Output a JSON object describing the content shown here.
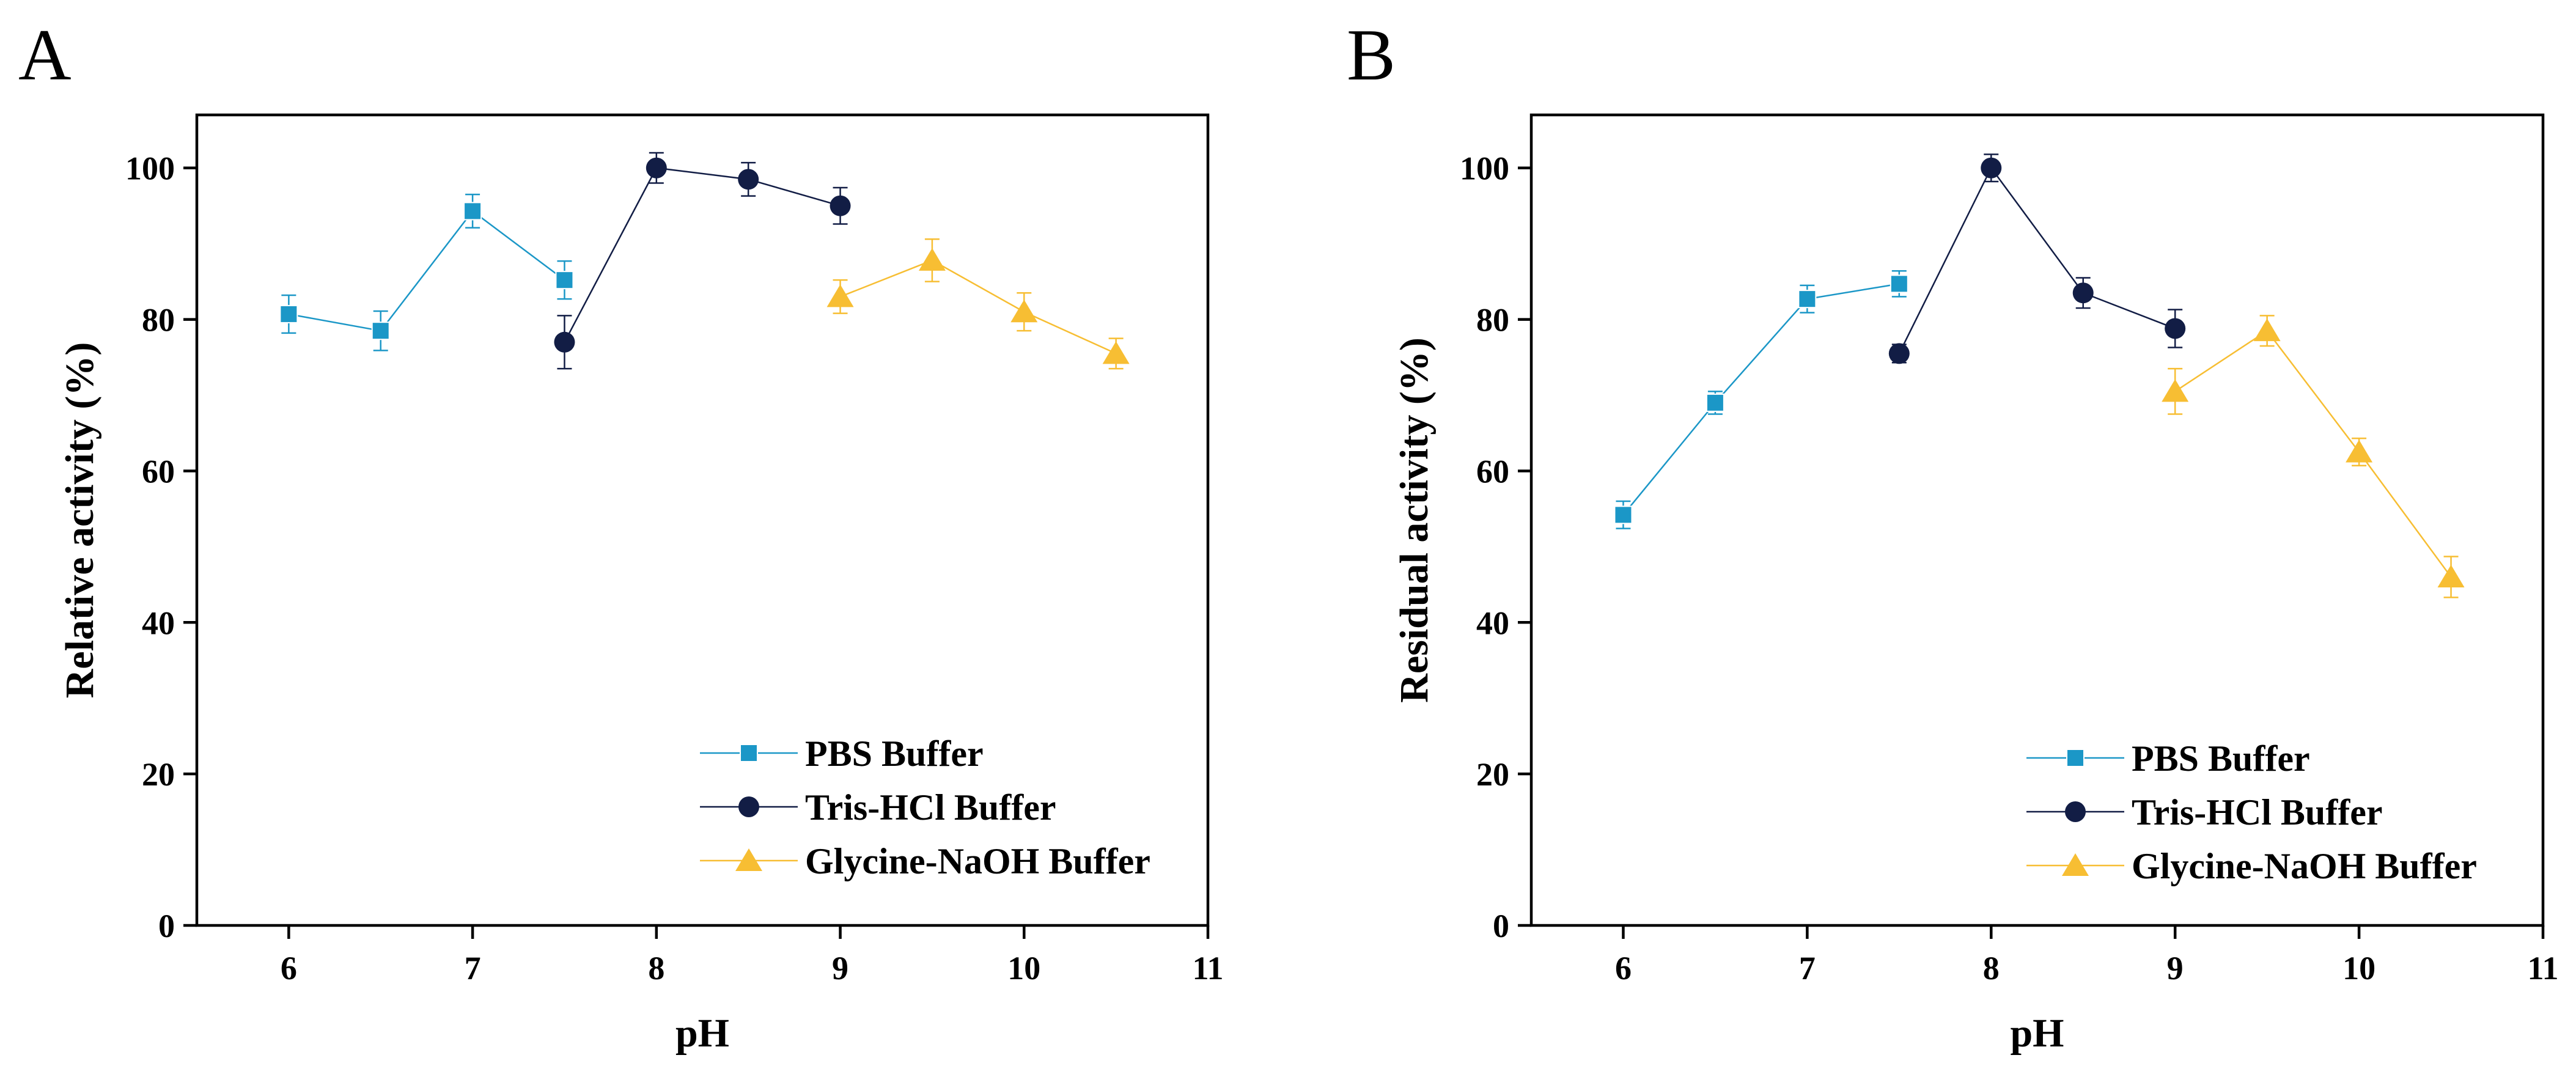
{
  "figure": {
    "colors": {
      "PBS Buffer": "#1b97c7",
      "Tris-HCl Buffer": "#121d45",
      "Glycine-NaOH Buffer": "#f7be33"
    }
  },
  "chart_data": [
    {
      "panel": "A",
      "type": "line",
      "title": "",
      "xlabel": "pH",
      "ylabel": "Relative activity (%)",
      "xlim": [
        5.5,
        11
      ],
      "ylim": [
        0,
        107
      ],
      "xticks": [
        6,
        7,
        8,
        9,
        10,
        11
      ],
      "yticks": [
        0,
        20,
        40,
        60,
        80,
        100
      ],
      "grid": false,
      "legend_position": "bottom-right",
      "series": [
        {
          "name": "PBS Buffer",
          "marker": "square",
          "color": "#1b97c7",
          "x": [
            6,
            6.5,
            7,
            7.5
          ],
          "y": [
            80.7,
            78.5,
            94.3,
            85.2
          ],
          "err": [
            2.5,
            2.6,
            2.2,
            2.5
          ]
        },
        {
          "name": "Tris-HCl Buffer",
          "marker": "circle",
          "color": "#121d45",
          "x": [
            7.5,
            8,
            8.5,
            9
          ],
          "y": [
            77.0,
            100.0,
            98.5,
            95.0
          ],
          "err": [
            3.5,
            2.0,
            2.2,
            2.4
          ]
        },
        {
          "name": "Glycine-NaOH Buffer",
          "marker": "triangle",
          "color": "#f7be33",
          "x": [
            9,
            9.5,
            10,
            10.5
          ],
          "y": [
            83.0,
            87.8,
            81.0,
            75.5
          ],
          "err": [
            2.2,
            2.8,
            2.5,
            2.0
          ]
        }
      ]
    },
    {
      "panel": "B",
      "type": "line",
      "title": "",
      "xlabel": "pH",
      "ylabel": "Residual activity (%)",
      "xlim": [
        5.5,
        11
      ],
      "ylim": [
        0,
        107
      ],
      "xticks": [
        6,
        7,
        8,
        9,
        10,
        11
      ],
      "yticks": [
        0,
        20,
        40,
        60,
        80,
        100
      ],
      "grid": false,
      "legend_position": "bottom-right",
      "series": [
        {
          "name": "PBS Buffer",
          "marker": "square",
          "color": "#1b97c7",
          "x": [
            6,
            6.5,
            7,
            7.5
          ],
          "y": [
            54.2,
            69.0,
            82.7,
            84.7
          ],
          "err": [
            1.8,
            1.5,
            1.8,
            1.7
          ]
        },
        {
          "name": "Tris-HCl Buffer",
          "marker": "circle",
          "color": "#121d45",
          "x": [
            7.5,
            8,
            8.5,
            9
          ],
          "y": [
            75.5,
            100.0,
            83.5,
            78.8
          ],
          "err": [
            1.2,
            1.8,
            2.0,
            2.5
          ]
        },
        {
          "name": "Glycine-NaOH Buffer",
          "marker": "triangle",
          "color": "#f7be33",
          "x": [
            9,
            9.5,
            10,
            10.5
          ],
          "y": [
            70.5,
            78.5,
            62.5,
            46.0
          ],
          "err": [
            3.0,
            2.0,
            1.8,
            2.7
          ]
        }
      ]
    }
  ]
}
